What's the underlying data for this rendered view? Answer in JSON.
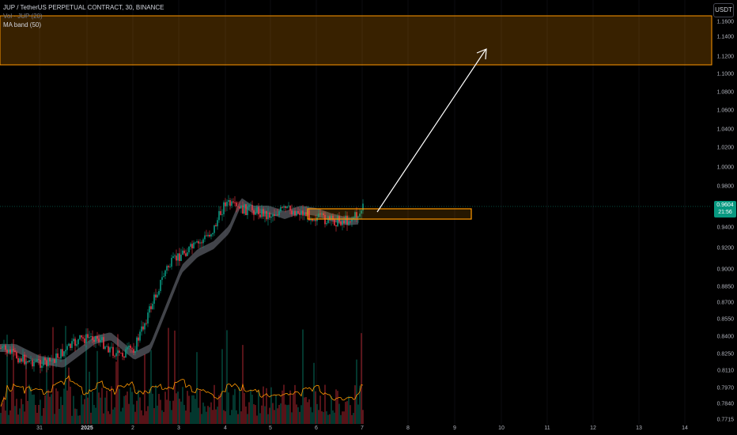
{
  "legend": {
    "symbol": "JUP / TetherUS PERPETUAL CONTRACT, 30, BINANCE",
    "volume": "Vol · JUP (20)",
    "ma_band": "MA band (50)"
  },
  "currency_button": "USDT",
  "last_price": {
    "value": "0.9604",
    "countdown": "21:56"
  },
  "price_ticks": [
    "1.1600",
    "1.1400",
    "1.1200",
    "1.1000",
    "1.0800",
    "1.0600",
    "1.0400",
    "1.0200",
    "1.0000",
    "0.9800",
    "0.9600",
    "0.9400",
    "0.9200",
    "0.9000",
    "0.8850",
    "0.8700",
    "0.8550",
    "0.8400",
    "0.8250",
    "0.8110",
    "0.7970",
    "0.7840",
    "0.7715"
  ],
  "time_ticks": [
    "31",
    "2025",
    "2",
    "3",
    "4",
    "5",
    "6",
    "7",
    "8",
    "9",
    "10",
    "11",
    "12",
    "13",
    "14"
  ],
  "colors": {
    "up": "#089981",
    "down": "#f23645",
    "zone": "#ff9800",
    "band": "#787b86",
    "volume_ma": "#ff9800",
    "arrow": "#ffffff"
  },
  "chart_data": {
    "type": "candlestick",
    "symbol": "JUP/USDT",
    "timeframe": "30",
    "resistance_zone": [
      1.1,
      1.165
    ],
    "entry_zone": [
      0.95,
      0.962
    ],
    "target_price": 1.13,
    "last_price": 0.9604
  }
}
